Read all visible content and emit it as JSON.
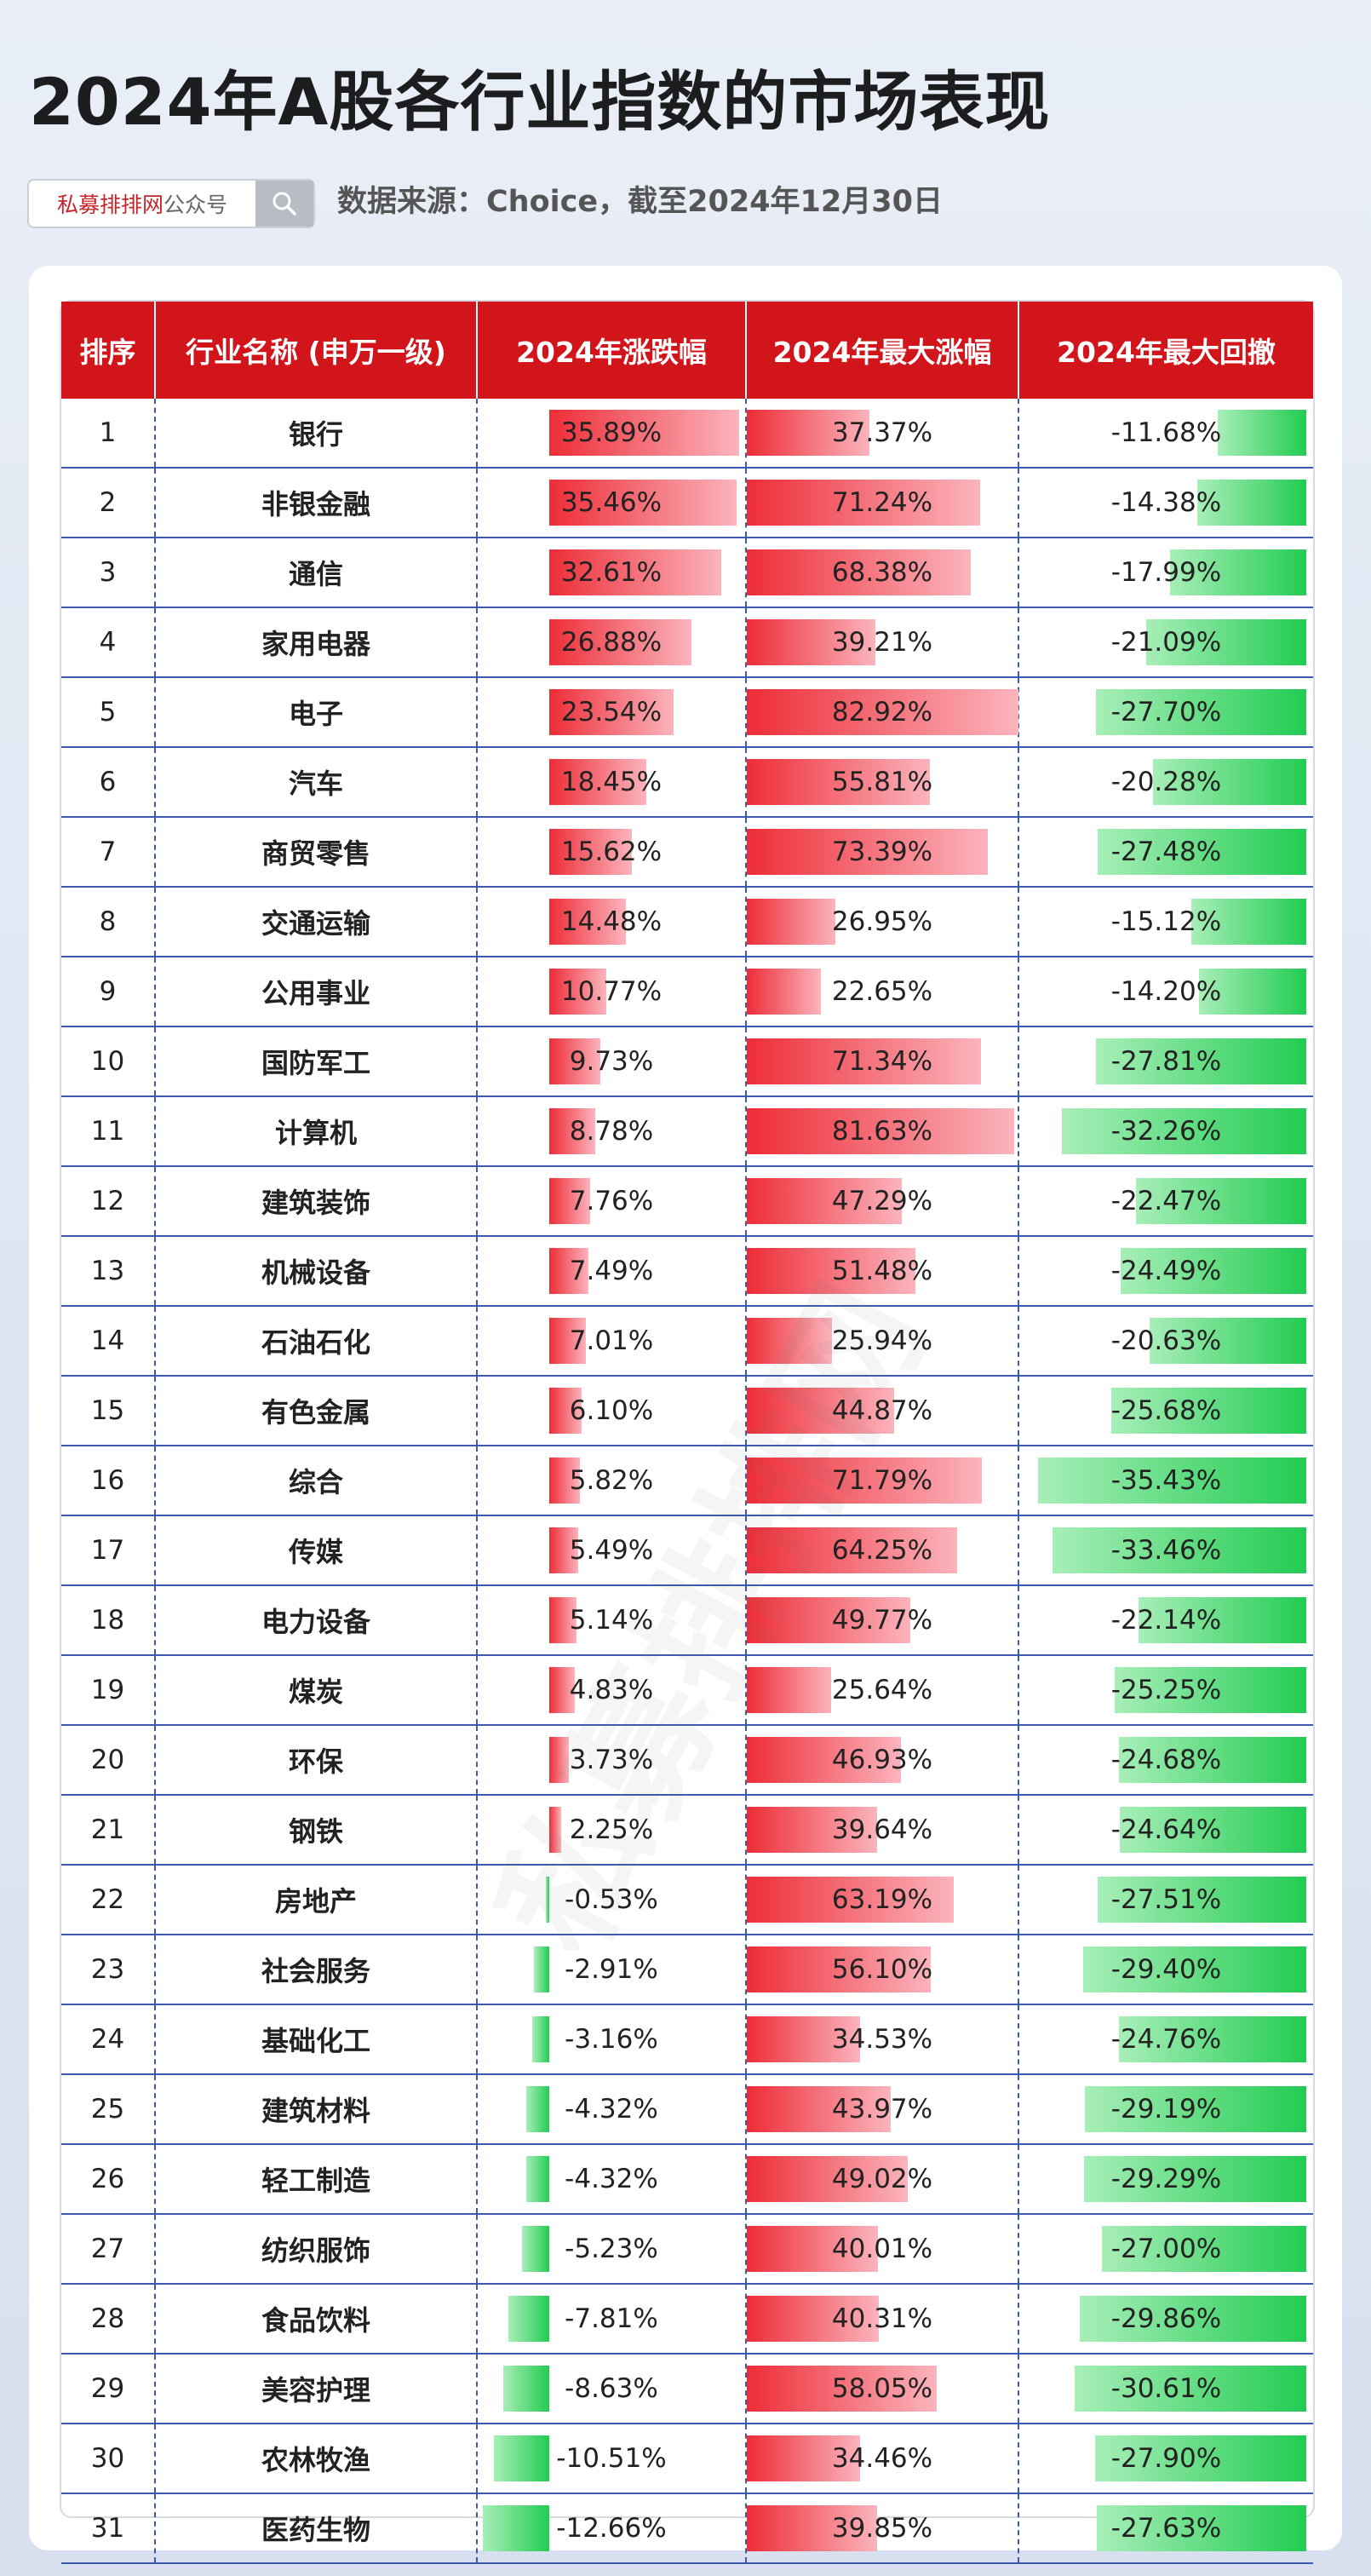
{
  "title": "2024年A股各行业指数的市场表现",
  "search": {
    "brand_red": "私募排排网",
    "brand_suffix": "公众号",
    "icon": "search-icon"
  },
  "source": "数据来源：Choice，截至2024年12月30日",
  "watermark": "私募排排网",
  "colors": {
    "header": "#d2141b",
    "positive_bar": "#ee2d37",
    "negative_bar": "#22cc52"
  },
  "table": {
    "headers": [
      "排序",
      "行业名称 (申万一级)",
      "2024年涨跌幅",
      "2024年最大涨幅",
      "2024年最大回撤"
    ],
    "rows": [
      {
        "rank": "1",
        "name": "银行",
        "change": "35.89%",
        "max_gain": "37.37%",
        "max_dd": "-11.68%"
      },
      {
        "rank": "2",
        "name": "非银金融",
        "change": "35.46%",
        "max_gain": "71.24%",
        "max_dd": "-14.38%"
      },
      {
        "rank": "3",
        "name": "通信",
        "change": "32.61%",
        "max_gain": "68.38%",
        "max_dd": "-17.99%"
      },
      {
        "rank": "4",
        "name": "家用电器",
        "change": "26.88%",
        "max_gain": "39.21%",
        "max_dd": "-21.09%"
      },
      {
        "rank": "5",
        "name": "电子",
        "change": "23.54%",
        "max_gain": "82.92%",
        "max_dd": "-27.70%"
      },
      {
        "rank": "6",
        "name": "汽车",
        "change": "18.45%",
        "max_gain": "55.81%",
        "max_dd": "-20.28%"
      },
      {
        "rank": "7",
        "name": "商贸零售",
        "change": "15.62%",
        "max_gain": "73.39%",
        "max_dd": "-27.48%"
      },
      {
        "rank": "8",
        "name": "交通运输",
        "change": "14.48%",
        "max_gain": "26.95%",
        "max_dd": "-15.12%"
      },
      {
        "rank": "9",
        "name": "公用事业",
        "change": "10.77%",
        "max_gain": "22.65%",
        "max_dd": "-14.20%"
      },
      {
        "rank": "10",
        "name": "国防军工",
        "change": "9.73%",
        "max_gain": "71.34%",
        "max_dd": "-27.81%"
      },
      {
        "rank": "11",
        "name": "计算机",
        "change": "8.78%",
        "max_gain": "81.63%",
        "max_dd": "-32.26%"
      },
      {
        "rank": "12",
        "name": "建筑装饰",
        "change": "7.76%",
        "max_gain": "47.29%",
        "max_dd": "-22.47%"
      },
      {
        "rank": "13",
        "name": "机械设备",
        "change": "7.49%",
        "max_gain": "51.48%",
        "max_dd": "-24.49%"
      },
      {
        "rank": "14",
        "name": "石油石化",
        "change": "7.01%",
        "max_gain": "25.94%",
        "max_dd": "-20.63%"
      },
      {
        "rank": "15",
        "name": "有色金属",
        "change": "6.10%",
        "max_gain": "44.87%",
        "max_dd": "-25.68%"
      },
      {
        "rank": "16",
        "name": "综合",
        "change": "5.82%",
        "max_gain": "71.79%",
        "max_dd": "-35.43%"
      },
      {
        "rank": "17",
        "name": "传媒",
        "change": "5.49%",
        "max_gain": "64.25%",
        "max_dd": "-33.46%"
      },
      {
        "rank": "18",
        "name": "电力设备",
        "change": "5.14%",
        "max_gain": "49.77%",
        "max_dd": "-22.14%"
      },
      {
        "rank": "19",
        "name": "煤炭",
        "change": "4.83%",
        "max_gain": "25.64%",
        "max_dd": "-25.25%"
      },
      {
        "rank": "20",
        "name": "环保",
        "change": "3.73%",
        "max_gain": "46.93%",
        "max_dd": "-24.68%"
      },
      {
        "rank": "21",
        "name": "钢铁",
        "change": "2.25%",
        "max_gain": "39.64%",
        "max_dd": "-24.64%"
      },
      {
        "rank": "22",
        "name": "房地产",
        "change": "-0.53%",
        "max_gain": "63.19%",
        "max_dd": "-27.51%"
      },
      {
        "rank": "23",
        "name": "社会服务",
        "change": "-2.91%",
        "max_gain": "56.10%",
        "max_dd": "-29.40%"
      },
      {
        "rank": "24",
        "name": "基础化工",
        "change": "-3.16%",
        "max_gain": "34.53%",
        "max_dd": "-24.76%"
      },
      {
        "rank": "25",
        "name": "建筑材料",
        "change": "-4.32%",
        "max_gain": "43.97%",
        "max_dd": "-29.19%"
      },
      {
        "rank": "26",
        "name": "轻工制造",
        "change": "-4.32%",
        "max_gain": "49.02%",
        "max_dd": "-29.29%"
      },
      {
        "rank": "27",
        "name": "纺织服饰",
        "change": "-5.23%",
        "max_gain": "40.01%",
        "max_dd": "-27.00%"
      },
      {
        "rank": "28",
        "name": "食品饮料",
        "change": "-7.81%",
        "max_gain": "40.31%",
        "max_dd": "-29.86%"
      },
      {
        "rank": "29",
        "name": "美容护理",
        "change": "-8.63%",
        "max_gain": "58.05%",
        "max_dd": "-30.61%"
      },
      {
        "rank": "30",
        "name": "农林牧渔",
        "change": "-10.51%",
        "max_gain": "34.46%",
        "max_dd": "-27.90%"
      },
      {
        "rank": "31",
        "name": "医药生物",
        "change": "-12.66%",
        "max_gain": "39.85%",
        "max_dd": "-27.63%"
      }
    ]
  }
}
